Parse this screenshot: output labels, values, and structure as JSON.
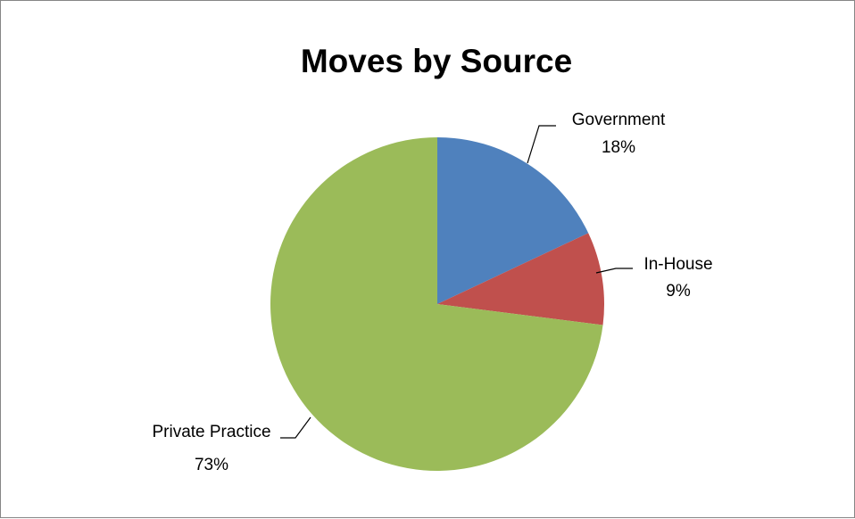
{
  "chart_data": {
    "type": "pie",
    "title": "Moves by Source",
    "categories": [
      "Government",
      "In-House",
      "Private Practice"
    ],
    "values": [
      18,
      9,
      73
    ],
    "value_labels": [
      "18%",
      "9%",
      "73%"
    ],
    "colors": [
      "#4F81BD",
      "#C0504D",
      "#9BBB59"
    ],
    "start_angle_deg": 0,
    "direction": "clockwise",
    "legend": "none",
    "data_labels": "outside-with-leader-lines"
  }
}
